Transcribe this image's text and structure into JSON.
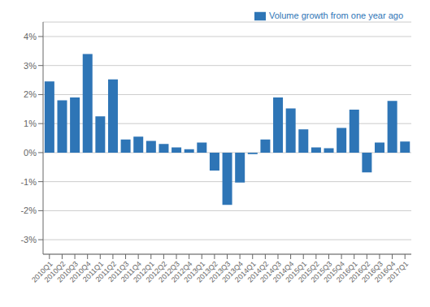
{
  "chart_data": {
    "type": "bar",
    "categories": [
      "2010Q1",
      "2010Q2",
      "2010Q3",
      "2010Q4",
      "2011Q1",
      "2011Q2",
      "2011Q3",
      "2011Q4",
      "2012Q1",
      "2012Q2",
      "2012Q3",
      "2012Q4",
      "2013Q1",
      "2013Q2",
      "2013Q3",
      "2013Q4",
      "2014Q1",
      "2014Q2",
      "2014Q3",
      "2014Q4",
      "2015Q1",
      "2015Q2",
      "2015Q3",
      "2015Q4",
      "2016Q1",
      "2016Q2",
      "2016Q3",
      "2016Q4",
      "2017Q1"
    ],
    "series": [
      {
        "name": "Volume growth from one year ago",
        "color": "#2E75B6",
        "values": [
          2.45,
          1.8,
          1.9,
          3.4,
          1.25,
          2.52,
          0.45,
          0.55,
          0.4,
          0.3,
          0.18,
          0.12,
          0.35,
          -0.62,
          -1.8,
          -1.03,
          -0.05,
          0.45,
          1.9,
          1.52,
          0.8,
          0.18,
          0.15,
          0.85,
          1.48,
          -0.68,
          0.35,
          1.78,
          0.38
        ]
      }
    ],
    "ylim": [
      -3.5,
      4.5
    ],
    "yticks": [
      {
        "value": -3,
        "label": "-3%"
      },
      {
        "value": -2,
        "label": "-2%"
      },
      {
        "value": -1,
        "label": "-1%"
      },
      {
        "value": 0,
        "label": "0%"
      },
      {
        "value": 1,
        "label": "1%"
      },
      {
        "value": 2,
        "label": "2%"
      },
      {
        "value": 3,
        "label": "3%"
      },
      {
        "value": 4,
        "label": "4%"
      }
    ],
    "grid": true,
    "legend": "upper right"
  }
}
